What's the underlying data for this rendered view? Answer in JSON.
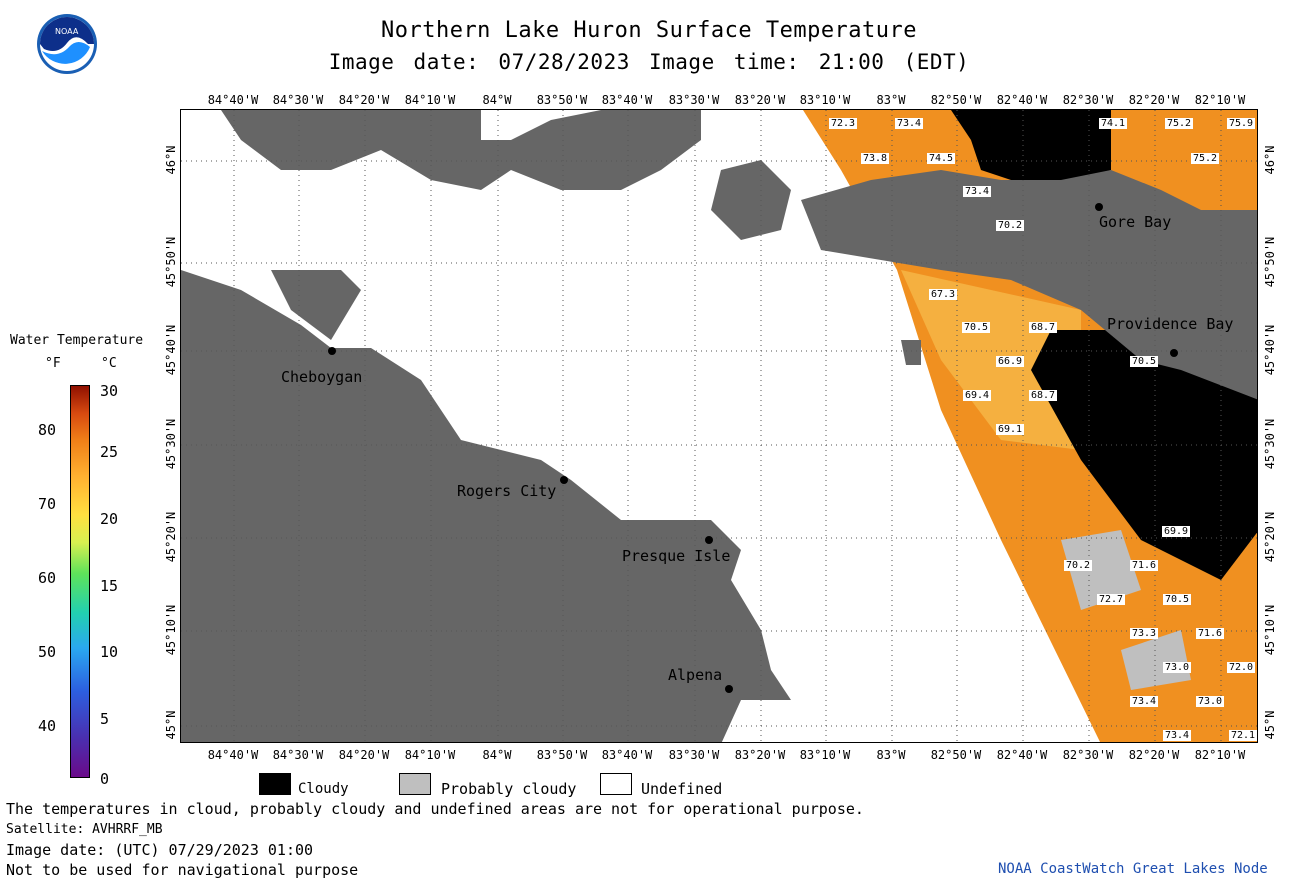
{
  "header": {
    "title": "Northern Lake Huron Surface Temperature",
    "subtitle": "Image date: 07/28/2023    Image time: 21:00 (EDT)",
    "logo_text": "NOAA"
  },
  "map": {
    "lon_labels_top": [
      "84°40'W",
      "84°30'W",
      "84°20'W",
      "84°10'W",
      "84°W",
      "83°50'W",
      "83°40'W",
      "83°30'W",
      "83°20'W",
      "83°10'W",
      "83°W",
      "82°50'W",
      "82°40'W",
      "82°30'W",
      "82°20'W",
      "82°10'W"
    ],
    "lon_labels_bottom": [
      "84°40'W",
      "84°30'W",
      "84°20'W",
      "84°10'W",
      "84°W",
      "83°50'W",
      "83°40'W",
      "83°30'W",
      "83°20'W",
      "83°10'W",
      "83°W",
      "82°50'W",
      "82°40'W",
      "82°30'W",
      "82°20'W",
      "82°10'W"
    ],
    "lat_labels": [
      "46°N",
      "45°50'N",
      "45°40'N",
      "45°30'N",
      "45°20'N",
      "45°10'N",
      "45°N"
    ],
    "cities": [
      {
        "name": "Cheboygan"
      },
      {
        "name": "Rogers City"
      },
      {
        "name": "Presque Isle"
      },
      {
        "name": "Alpena"
      },
      {
        "name": "Gore Bay"
      },
      {
        "name": "Providence Bay"
      }
    ],
    "temperature_labels": [
      "72.3",
      "73.4",
      "74.1",
      "75.2",
      "75.9",
      "73.8",
      "74.5",
      "75.2",
      "73.4",
      "70.2",
      "67.3",
      "70.5",
      "68.7",
      "66.9",
      "70.5",
      "69.4",
      "68.7",
      "69.1",
      "69.9",
      "70.2",
      "71.6",
      "72.7",
      "70.5",
      "73.3",
      "71.6",
      "73.0",
      "72.0",
      "73.4",
      "73.0",
      "73.4",
      "72.1"
    ],
    "colors": {
      "land": "#666666",
      "cloud": "#000000",
      "probably_cloudy": "#bfbfbf",
      "undefined": "#ffffff",
      "warm_water": "#f0901a"
    }
  },
  "legend": {
    "title": "Water Temperature",
    "unit_f": "°F",
    "unit_c": "°C",
    "f_ticks": [
      "80",
      "70",
      "60",
      "50",
      "40"
    ],
    "c_ticks": [
      "30",
      "25",
      "20",
      "15",
      "10",
      "5",
      "0"
    ],
    "key": [
      {
        "label": "Cloudy",
        "color": "#000000"
      },
      {
        "label": "Probably cloudy",
        "color": "#bfbfbf"
      },
      {
        "label": "Undefined",
        "color": "#ffffff"
      }
    ]
  },
  "footer": {
    "note": "The temperatures in cloud, probably cloudy and undefined areas are not for operational purpose.",
    "satellite": "Satellite: AVHRRF_MB",
    "utc_date": "Image date: (UTC) 07/29/2023  01:00",
    "nav_warning": "Not to be used for navigational purpose",
    "credit": "NOAA CoastWatch Great Lakes Node"
  }
}
